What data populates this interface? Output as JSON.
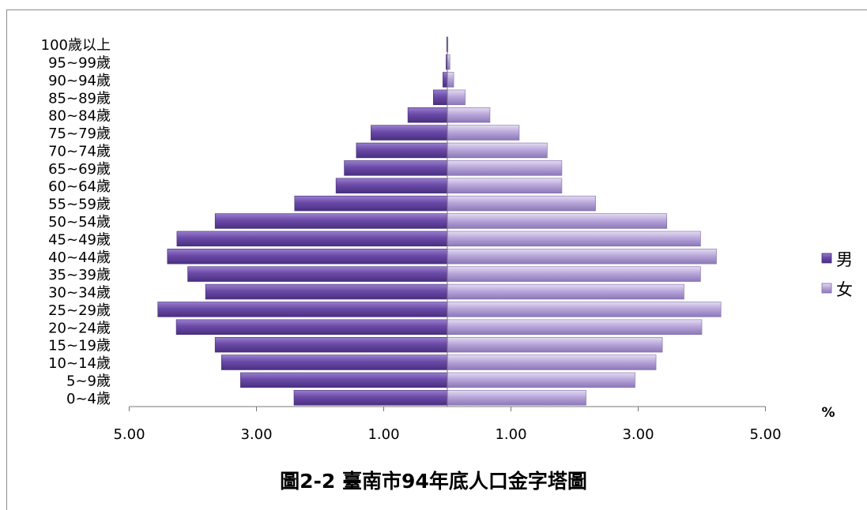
{
  "caption": "圖2-2 臺南市94年底人口金字塔圖",
  "unit_label": "%",
  "colors": {
    "male": "#6a4aa6",
    "male_light": "#8a6cc4",
    "female": "#b5a2d6",
    "female_light": "#d7cbea",
    "axis": "#666666"
  },
  "chart_data": {
    "type": "bar",
    "orientation": "horizontal-population-pyramid",
    "title": "",
    "xlabel": "%",
    "x_tick_labels": [
      "5.00",
      "3.00",
      "1.00",
      "1.00",
      "3.00",
      "5.00"
    ],
    "xlim": [
      -5,
      5
    ],
    "legend_position": "right",
    "categories": [
      "0~4歲",
      "5~9歲",
      "10~14歲",
      "15~19歲",
      "20~24歲",
      "25~29歲",
      "30~34歲",
      "35~39歲",
      "40~44歲",
      "45~49歲",
      "50~54歲",
      "55~59歲",
      "60~64歲",
      "65~69歲",
      "70~74歲",
      "75~79歲",
      "80~84歲",
      "85~89歲",
      "90~94歲",
      "95~99歲",
      "100歲以上"
    ],
    "series": [
      {
        "name": "男",
        "values": [
          2.41,
          3.25,
          3.55,
          3.65,
          4.26,
          4.55,
          3.8,
          4.08,
          4.4,
          4.25,
          3.65,
          2.4,
          1.75,
          1.62,
          1.43,
          1.2,
          0.62,
          0.22,
          0.07,
          0.02,
          0.01
        ]
      },
      {
        "name": "女",
        "values": [
          2.18,
          2.95,
          3.28,
          3.38,
          4.0,
          4.3,
          3.72,
          3.98,
          4.23,
          3.98,
          3.45,
          2.33,
          1.8,
          1.8,
          1.57,
          1.13,
          0.67,
          0.28,
          0.1,
          0.04,
          0.01
        ]
      }
    ]
  }
}
